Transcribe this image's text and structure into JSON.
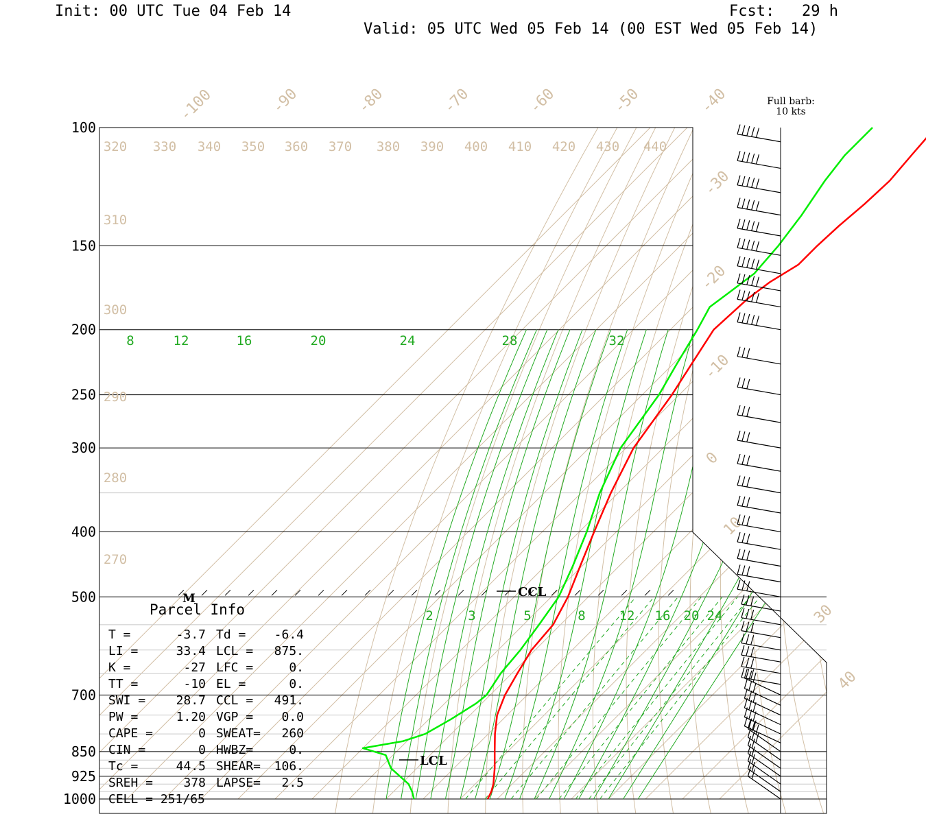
{
  "header": {
    "init": "Init: 00 UTC Tue 04 Feb 14",
    "fcst": "Fcst:   29 h",
    "valid": "Valid: 05 UTC Wed 05 Feb 14 (00 EST Wed 05 Feb 14)"
  },
  "barb_legend": [
    "Full barb:",
    "10 kts"
  ],
  "chart_data": {
    "type": "skew-t log-p sounding",
    "y_axis": {
      "scale": "log pressure",
      "unit": "hPa",
      "ticks": [
        100,
        150,
        200,
        250,
        300,
        400,
        500,
        700,
        850,
        925,
        1000
      ],
      "range": [
        1000,
        100
      ]
    },
    "isotherm_labels_c": [
      -100,
      -90,
      -80,
      -70,
      -60,
      -50,
      -40,
      -30,
      -20,
      -10,
      0,
      10,
      30,
      40
    ],
    "theta_labels_k": [
      320,
      330,
      340,
      350,
      360,
      370,
      380,
      390,
      400,
      410,
      420,
      430,
      440,
      310,
      300,
      290,
      280,
      270
    ],
    "theta_e_labels": [
      8,
      12,
      16,
      20,
      24,
      28,
      32
    ],
    "mixing_ratio_labels": [
      2,
      3,
      5,
      8,
      12,
      16,
      20,
      24
    ],
    "temperature_profile": {
      "color": "#ff0000",
      "points": [
        [
          1000,
          -2.6
        ],
        [
          975,
          -3.6
        ],
        [
          950,
          -5.1
        ],
        [
          900,
          -9.0
        ],
        [
          850,
          -13.5
        ],
        [
          800,
          -18.2
        ],
        [
          750,
          -22.7
        ],
        [
          700,
          -26.0
        ],
        [
          650,
          -28.5
        ],
        [
          600,
          -31.0
        ],
        [
          550,
          -32.0
        ],
        [
          500,
          -35.5
        ],
        [
          450,
          -40.5
        ],
        [
          400,
          -46.0
        ],
        [
          350,
          -52.0
        ],
        [
          300,
          -58.0
        ],
        [
          250,
          -62.0
        ],
        [
          225,
          -65.0
        ],
        [
          200,
          -68.3
        ],
        [
          180,
          -67.5
        ],
        [
          170,
          -66.0
        ],
        [
          160,
          -63.0
        ],
        [
          150,
          -63.0
        ],
        [
          140,
          -62.5
        ],
        [
          130,
          -61.5
        ],
        [
          120,
          -61.0
        ],
        [
          110,
          -62.0
        ],
        [
          100,
          -63.0
        ]
      ]
    },
    "dewpoint_profile": {
      "color": "#00ee00",
      "points": [
        [
          1000,
          -22.5
        ],
        [
          975,
          -25.0
        ],
        [
          950,
          -28.0
        ],
        [
          900,
          -37.0
        ],
        [
          860,
          -42.0
        ],
        [
          840,
          -50.0
        ],
        [
          820,
          -41.0
        ],
        [
          800,
          -37.0
        ],
        [
          760,
          -34.0
        ],
        [
          720,
          -31.5
        ],
        [
          700,
          -31.0
        ],
        [
          650,
          -33.0
        ],
        [
          600,
          -34.0
        ],
        [
          550,
          -35.8
        ],
        [
          500,
          -38.0
        ],
        [
          450,
          -42.5
        ],
        [
          400,
          -48.0
        ],
        [
          350,
          -55.0
        ],
        [
          300,
          -61.5
        ],
        [
          250,
          -65.5
        ],
        [
          225,
          -69.0
        ],
        [
          200,
          -72.7
        ],
        [
          185,
          -75.5
        ],
        [
          175,
          -74.0
        ],
        [
          165,
          -72.5
        ],
        [
          150,
          -73.5
        ],
        [
          135,
          -75.5
        ],
        [
          120,
          -78.5
        ],
        [
          110,
          -80.0
        ],
        [
          100,
          -80.0
        ]
      ]
    },
    "wind_pressures": [
      1000,
      975,
      950,
      925,
      900,
      875,
      850,
      825,
      800,
      775,
      750,
      725,
      700,
      675,
      650,
      625,
      600,
      575,
      550,
      525,
      500,
      475,
      450,
      425,
      400,
      375,
      350,
      325,
      300,
      275,
      250,
      225,
      200,
      185,
      175,
      165,
      155,
      145,
      135,
      125,
      115,
      105
    ],
    "markers": [
      "CCL",
      "LCL",
      "M"
    ]
  },
  "parcel_info": {
    "title": "Parcel Info",
    "rows": [
      {
        "a_k": "T  =",
        "a_v": "-3.7",
        "b_k": "Td =",
        "b_v": "-6.4"
      },
      {
        "a_k": "LI =",
        "a_v": "33.4",
        "b_k": "LCL =",
        "b_v": "875."
      },
      {
        "a_k": "K  =",
        "a_v": "-27",
        "b_k": "LFC =",
        "b_v": "0."
      },
      {
        "a_k": "TT =",
        "a_v": "-10",
        "b_k": "EL  =",
        "b_v": "0."
      },
      {
        "a_k": "SWI =",
        "a_v": "28.7",
        "b_k": "CCL =",
        "b_v": "491."
      },
      {
        "a_k": "PW =",
        "a_v": "1.20",
        "b_k": "VGP =",
        "b_v": "0.0"
      },
      {
        "a_k": "CAPE =",
        "a_v": "0",
        "b_k": "SWEAT=",
        "b_v": "260"
      },
      {
        "a_k": "CIN =",
        "a_v": "0",
        "b_k": "HWBZ=",
        "b_v": "0."
      },
      {
        "a_k": "Tc =",
        "a_v": "44.5",
        "b_k": "SHEAR=",
        "b_v": "106."
      },
      {
        "a_k": "SREH =",
        "a_v": "378",
        "b_k": "LAPSE=",
        "b_v": "2.5"
      },
      {
        "a_k": "CELL = 251/65",
        "a_v": "",
        "b_k": "",
        "b_v": ""
      }
    ]
  },
  "colors": {
    "temperature": "#ff0000",
    "dewpoint": "#00ee00",
    "thermo_lines": "#d2bfa5",
    "green_lines": "#22aa22"
  }
}
